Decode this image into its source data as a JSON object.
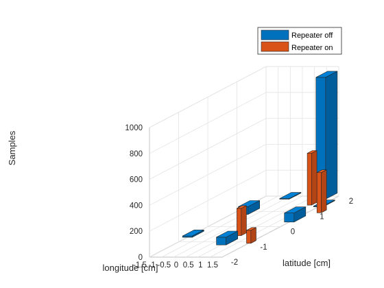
{
  "chart_data": {
    "type": "bar3d",
    "xlabel": "longitude [cm]",
    "ylabel": "latitude [cm]",
    "zlabel": "Samples",
    "x_ticks": [
      "-1.5",
      "-1",
      "-0.5",
      "0",
      "0.5",
      "1",
      "1.5"
    ],
    "y_ticks": [
      "-2",
      "-1",
      "0",
      "1",
      "2"
    ],
    "z_ticks": [
      "0",
      "200",
      "400",
      "600",
      "800",
      "1000"
    ],
    "xlim": [
      -1.5,
      1.5
    ],
    "ylim": [
      -2,
      2
    ],
    "zlim": [
      0,
      1000
    ],
    "grid": true,
    "legend_position": "top-right",
    "series": [
      {
        "name": "Repeater off",
        "color": "#0072BD",
        "bars": [
          {
            "x": -1.5,
            "y": -0.5,
            "value": 10
          },
          {
            "x": -1.0,
            "y": 1.0,
            "value": 60
          },
          {
            "x": -0.5,
            "y": 2.0,
            "value": 5
          },
          {
            "x": 1.0,
            "y": 2.0,
            "value": 940
          },
          {
            "x": 0.5,
            "y": -1.0,
            "value": 60
          },
          {
            "x": 1.5,
            "y": 1.5,
            "value": 5
          },
          {
            "x": 1.5,
            "y": 0.5,
            "value": 70
          }
        ]
      },
      {
        "name": "Repeater on",
        "color": "#D95319",
        "bars": [
          {
            "x": 0.5,
            "y": -0.5,
            "value": 210
          },
          {
            "x": 1.0,
            "y": 1.5,
            "value": 400
          },
          {
            "x": 1.5,
            "y": -1.0,
            "value": 100
          },
          {
            "x": 2.0,
            "y": 1.0,
            "value": 310
          }
        ]
      }
    ]
  }
}
